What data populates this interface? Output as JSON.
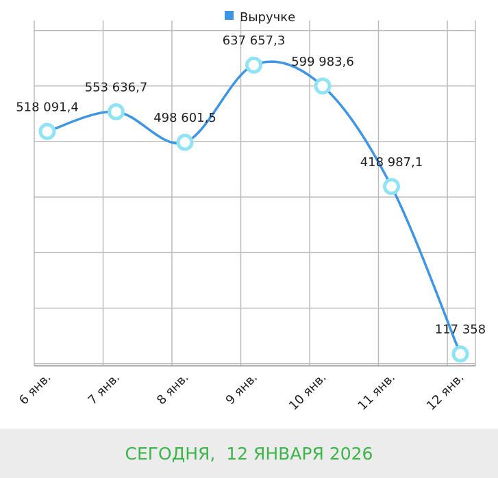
{
  "chart_data": {
    "type": "line",
    "categories": [
      "6 янв.",
      "7 янв.",
      "8 янв.",
      "9 янв.",
      "10 янв.",
      "11 янв.",
      "12 янв."
    ],
    "series": [
      {
        "name": "Выручке",
        "color": "#3d95e8",
        "values": [
          518091.4,
          553636.7,
          498601.5,
          637657.3,
          599983.6,
          418987.1,
          117358
        ],
        "value_labels": [
          "518 091,4",
          "553 636,7",
          "498 601,5",
          "637 657,3",
          "599 983,6",
          "418 987,1",
          "117 358"
        ]
      }
    ],
    "ylim": [
      96000,
      718000
    ],
    "yticks": [
      100000,
      200000,
      300000,
      400000,
      500000,
      600000,
      700000
    ],
    "grid": true,
    "legend": "top",
    "marker_color": "#8ee3f5"
  },
  "footer": "СЕГОДНЯ,  12 ЯНВАРЯ 2026"
}
